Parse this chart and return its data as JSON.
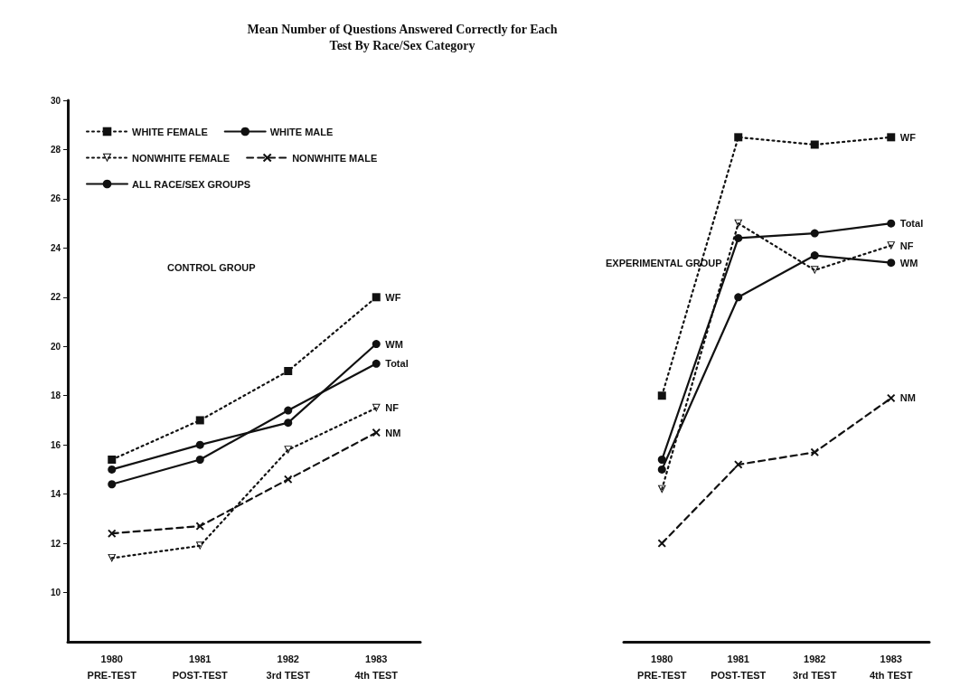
{
  "chart_data": [
    {
      "type": "line",
      "title": "Mean Number of Questions Answered Correctly for Each\nTest By Race/Sex Category",
      "categories": [
        "1980\nPRE-TEST",
        "1981\nPOST-TEST",
        "1982\n3rd TEST",
        "1983\n4th TEST"
      ],
      "ylim": [
        8,
        30
      ],
      "yticks": [
        10,
        12,
        14,
        16,
        18,
        20,
        22,
        24,
        26,
        28,
        30
      ],
      "legend": "top left",
      "grid": false,
      "series": [
        {
          "name": "WHITE FEMALE",
          "color": "#111111",
          "marker": "square",
          "line_style": "dotted",
          "values": [
            15.4,
            17.0,
            19.0,
            22.0
          ]
        },
        {
          "name": "WHITE MALE",
          "color": "#111111",
          "marker": "circle",
          "line_style": "solid",
          "values": [
            15.0,
            16.0,
            16.9,
            20.1
          ]
        },
        {
          "name": "NONWHITE FEMALE",
          "color": "#111111",
          "marker": "triangle",
          "line_style": "dotted",
          "values": [
            11.4,
            11.9,
            15.8,
            17.5
          ]
        },
        {
          "name": "NONWHITE MALE",
          "color": "#111111",
          "marker": "cross",
          "line_style": "dashed",
          "values": [
            12.4,
            12.7,
            14.6,
            16.5
          ]
        },
        {
          "name": "ALL RACE/SEX GROUPS",
          "color": "#111111",
          "marker": "circle",
          "line_style": "solid",
          "values": [
            14.4,
            15.4,
            17.4,
            19.3
          ]
        }
      ],
      "annotations": [
        "CONTROL GROUP",
        {
          "text": "WF",
          "x": "1983\n4th TEST",
          "y": 22.0
        },
        {
          "text": "WM",
          "x": "1983\n4th TEST",
          "y": 20.1
        },
        {
          "text": "Total",
          "x": "1983\n4th TEST",
          "y": 19.3
        },
        {
          "text": "NF",
          "x": "1983\n4th TEST",
          "y": 17.5
        },
        {
          "text": "NM",
          "x": "1983\n4th TEST",
          "y": 16.5
        }
      ]
    },
    {
      "type": "line",
      "categories": [
        "1980\nPRE-TEST",
        "1981\nPOST-TEST",
        "1982\n3rd TEST",
        "1983\n4th TEST"
      ],
      "ylim": [
        8,
        30
      ],
      "yticks": [
        10,
        12,
        14,
        16,
        18,
        20,
        22,
        24,
        26,
        28,
        30
      ],
      "tick_labels": "x",
      "grid": false,
      "series": [
        {
          "color": "#111111",
          "marker": "square",
          "line_style": "dotted",
          "values": [
            18.0,
            28.5,
            28.2,
            28.5
          ]
        },
        {
          "color": "#111111",
          "marker": "circle",
          "line_style": "solid",
          "values": [
            15.0,
            22.0,
            23.7,
            23.4
          ]
        },
        {
          "color": "#111111",
          "marker": "triangle",
          "line_style": "dotted",
          "values": [
            14.2,
            25.0,
            23.1,
            24.1
          ]
        },
        {
          "color": "#111111",
          "marker": "cross",
          "line_style": "dashed",
          "values": [
            12.0,
            15.2,
            15.7,
            17.9
          ]
        },
        {
          "color": "#111111",
          "marker": "circle",
          "line_style": "solid",
          "values": [
            15.4,
            24.4,
            24.6,
            25.0
          ]
        }
      ],
      "annotations": [
        "EXPERIMENTAL GROUP",
        {
          "text": "WF",
          "x": "1983\n4th TEST",
          "y": 28.5
        },
        {
          "text": "Total",
          "x": "1983\n4th TEST",
          "y": 25.0
        },
        {
          "text": "NF",
          "x": "1983\n4th TEST",
          "y": 24.1
        },
        {
          "text": "WM",
          "x": "1983\n4th TEST",
          "y": 23.4
        },
        {
          "text": "NM",
          "x": "1983\n4th TEST",
          "y": 17.9
        }
      ]
    }
  ]
}
